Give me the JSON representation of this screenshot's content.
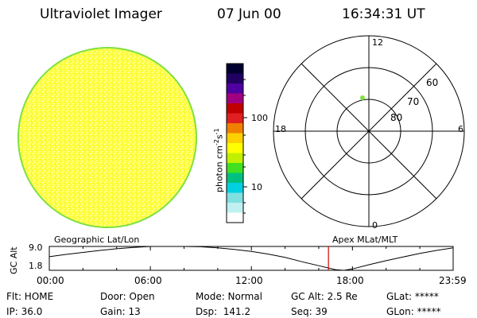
{
  "header": {
    "instrument": "Ultraviolet Imager",
    "date": "07 Jun 00",
    "time": "16:34:31 UT"
  },
  "colorbar": {
    "unit_label": "photon cm",
    "unit_sup1": "-2",
    "unit_mid": "s",
    "unit_sup2": "-1",
    "tick_10": "10",
    "tick_100": "100",
    "colors": [
      "#000030",
      "#200060",
      "#5000a0",
      "#a00080",
      "#c00000",
      "#e02020",
      "#f08000",
      "#ffd000",
      "#ffff00",
      "#c0f000",
      "#40e020",
      "#00c080",
      "#00d0e0",
      "#80e0e0",
      "#c0f0f0",
      "#ffffff"
    ]
  },
  "polar_plot": {
    "mlt_labels": {
      "top": "12",
      "bottom": "0",
      "left": "18",
      "right": "6"
    },
    "lat_labels": {
      "outer": "60",
      "middle": "70",
      "inner": "80"
    },
    "point_color": "#80e040"
  },
  "altitude_strip": {
    "ylabel": "GC Alt",
    "ymax_label": "9.0",
    "ymin_label": "1.8",
    "left_caption": "Geographic Lat/Lon",
    "right_caption": "Apex MLat/MLT",
    "time_ticks": [
      "00:00",
      "06:00",
      "12:00",
      "18:00",
      "23:59"
    ],
    "marker_color": "#d00000"
  },
  "chart_data": {
    "type": "line",
    "title": "",
    "xlabel": "",
    "ylabel": "GC Alt",
    "x_hours": [
      0,
      1,
      2,
      3,
      4,
      5,
      6,
      7,
      8,
      9,
      10,
      11,
      12,
      13,
      14,
      15,
      16,
      17,
      17.5,
      18,
      19,
      20,
      21,
      22,
      23,
      23.98
    ],
    "y": [
      5.9,
      6.6,
      7.2,
      7.8,
      8.3,
      8.7,
      9.0,
      9.0,
      9.0,
      8.9,
      8.6,
      8.1,
      7.5,
      6.7,
      5.7,
      4.4,
      3.2,
      2.0,
      1.8,
      2.2,
      3.5,
      4.7,
      5.8,
      6.9,
      7.8,
      8.6
    ],
    "ylim": [
      1.8,
      9.0
    ],
    "xlim": [
      0,
      23.98
    ],
    "current_time_hours": 16.575
  },
  "status": {
    "flt": "Flt: HOME",
    "door": "Door: Open",
    "mode": "Mode: Normal",
    "gc_alt": "GC Alt: 2.5 Re",
    "glat": "GLat: *****",
    "ip": "IP: 36.0",
    "gain": "Gain: 13",
    "dsp": "Dsp:  141.2",
    "seq": "Seq: 39",
    "glon": "GLon: *****"
  }
}
